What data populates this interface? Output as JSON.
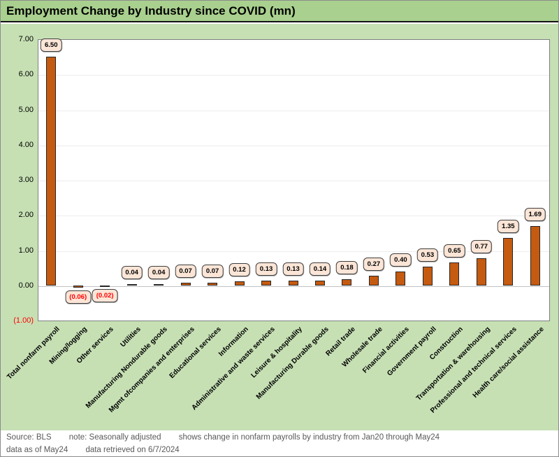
{
  "title": "Employment Change by Industry since COVID (mn)",
  "chart_data": {
    "type": "bar",
    "title": "Employment Change by Industry since COVID (mn)",
    "xlabel": "",
    "ylabel": "",
    "ylim": [
      -1,
      7
    ],
    "grid": true,
    "legend": "none",
    "categories": [
      "Total nonfarm payroll",
      "Mining/logging",
      "Other services",
      "Utilities",
      "Manufacturing Nondurable goods",
      "Mgmt ofcompanies and enterprises",
      "Educational services",
      "Information",
      "Administrative and waste services",
      "Leisure & hospitality",
      "Manufacturing Durable goods",
      "Retail trade",
      "Wholesale trade",
      "Financial activities",
      "Government payroll",
      "Construction",
      "Transportation & warehousing",
      "Professional and technical services",
      "Health care/social assistance"
    ],
    "values": [
      6.5,
      -0.06,
      -0.02,
      0.04,
      0.04,
      0.07,
      0.07,
      0.12,
      0.13,
      0.13,
      0.14,
      0.18,
      0.27,
      0.4,
      0.53,
      0.65,
      0.77,
      1.35,
      1.69
    ],
    "data_labels": [
      "6.50",
      "(0.06)",
      "(0.02)",
      "0.04",
      "0.04",
      "0.07",
      "0.07",
      "0.12",
      "0.13",
      "0.13",
      "0.14",
      "0.18",
      "0.27",
      "0.40",
      "0.53",
      "0.65",
      "0.77",
      "1.35",
      "1.69"
    ],
    "y_ticks": [
      {
        "label": "7.00",
        "value": 7
      },
      {
        "label": "6.00",
        "value": 6
      },
      {
        "label": "5.00",
        "value": 5
      },
      {
        "label": "4.00",
        "value": 4
      },
      {
        "label": "3.00",
        "value": 3
      },
      {
        "label": "2.00",
        "value": 2
      },
      {
        "label": "1.00",
        "value": 1
      },
      {
        "label": "0.00",
        "value": 0
      },
      {
        "label": "(1.00)",
        "value": -1
      }
    ],
    "bar_color": "#C55A11",
    "bar_border_color": "#262626",
    "label_box_fill": "#FBE5D6",
    "label_box_border": "#3F3F3F",
    "negative_text_color": "#FF0000"
  },
  "colors": {
    "header_band": "#A9D08E",
    "chart_background": "#C6E0B4",
    "plot_background": "#FFFFFF",
    "plot_border": "#7F7F7F",
    "gridline": "#EDEDED",
    "footer_text": "#595959",
    "title_text": "#000000"
  },
  "footer": {
    "line1": [
      "Source: BLS",
      "note: Seasonally adjusted",
      "shows change in nonfarm payrolls by industry from Jan20 through May24"
    ],
    "line2": [
      "data as of May24",
      "data retrieved on 6/7/2024"
    ]
  }
}
